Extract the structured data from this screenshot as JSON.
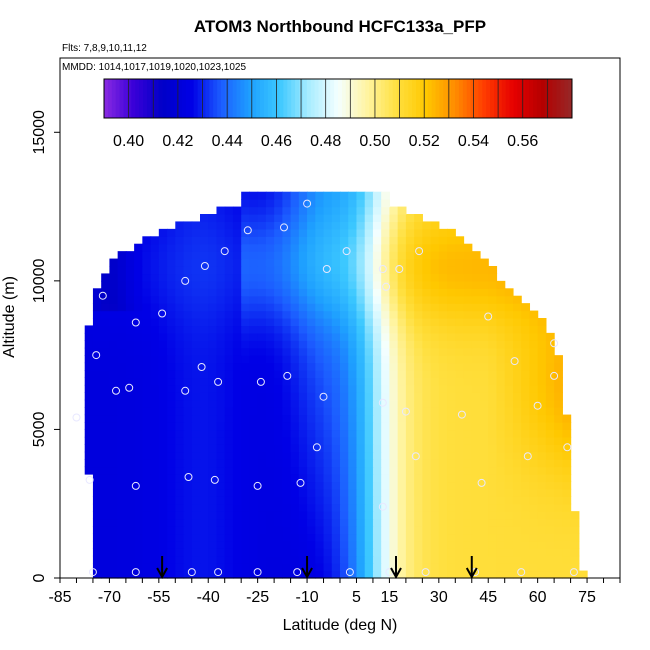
{
  "chart_data": {
    "type": "heatmap",
    "title": "ATOM3 Northbound HCFC133a_PFP",
    "flights_label": "Flts: 7,8,9,10,11,12",
    "mmdd_label": "MMDD: 1014,1017,1019,1020,1023,1025",
    "xlabel": "Latitude (deg N)",
    "ylabel": "Altitude (m)",
    "xlim": [
      -85,
      85
    ],
    "ylim": [
      0,
      17500
    ],
    "x_ticks": [
      -85,
      -70,
      -55,
      -40,
      -25,
      -10,
      5,
      15,
      30,
      45,
      60,
      75
    ],
    "x_minor_step": 5,
    "y_ticks": [
      0,
      5000,
      10000,
      15000
    ],
    "colorbar": {
      "min": 0.39,
      "max": 0.58,
      "tick_values": [
        0.4,
        0.42,
        0.44,
        0.46,
        0.48,
        0.5,
        0.52,
        0.54,
        0.56
      ],
      "tick_labels": [
        "0.40",
        "0.42",
        "0.44",
        "0.46",
        "0.48",
        "0.50",
        "0.52",
        "0.54",
        "0.56"
      ],
      "colors": [
        "#8a2be2",
        "#3a00d8",
        "#0000c8",
        "#0000e6",
        "#1c5cff",
        "#1ea0ff",
        "#3cc8ff",
        "#a8ecff",
        "#f4ffff",
        "#fff4a0",
        "#ffe040",
        "#ffc800",
        "#ff8c00",
        "#ff3c00",
        "#e60000",
        "#b40000",
        "#962828"
      ]
    },
    "altitude_envelope": [
      {
        "alt": 0,
        "lat_min": -75,
        "lat_max": 74
      },
      {
        "alt": 1500,
        "lat_min": -75,
        "lat_max": 72
      },
      {
        "alt": 3000,
        "lat_min": -76,
        "lat_max": 70
      },
      {
        "alt": 4500,
        "lat_min": -77,
        "lat_max": 70
      },
      {
        "alt": 6000,
        "lat_min": -77,
        "lat_max": 68
      },
      {
        "alt": 7500,
        "lat_min": -77,
        "lat_max": 66
      },
      {
        "alt": 8500,
        "lat_min": -76,
        "lat_max": 62
      },
      {
        "alt": 9500,
        "lat_min": -74,
        "lat_max": 53
      },
      {
        "alt": 10500,
        "lat_min": -70,
        "lat_max": 44
      },
      {
        "alt": 11500,
        "lat_min": -55,
        "lat_max": 34
      },
      {
        "alt": 12500,
        "lat_min": -30,
        "lat_max": 14
      }
    ],
    "sample_points": [
      {
        "lat": -75,
        "alt": 200
      },
      {
        "lat": -62,
        "alt": 200
      },
      {
        "lat": -45,
        "alt": 200
      },
      {
        "lat": -37,
        "alt": 200
      },
      {
        "lat": -25,
        "alt": 200
      },
      {
        "lat": -13,
        "alt": 200
      },
      {
        "lat": 3,
        "alt": 200
      },
      {
        "lat": 15,
        "alt": 200
      },
      {
        "lat": 26,
        "alt": 200
      },
      {
        "lat": 41,
        "alt": 200
      },
      {
        "lat": 55,
        "alt": 200
      },
      {
        "lat": 71,
        "alt": 200
      },
      {
        "lat": -76,
        "alt": 3300
      },
      {
        "lat": -62,
        "alt": 3100
      },
      {
        "lat": -46,
        "alt": 3400
      },
      {
        "lat": -38,
        "alt": 3300
      },
      {
        "lat": -25,
        "alt": 3100
      },
      {
        "lat": -12,
        "alt": 3200
      },
      {
        "lat": -7,
        "alt": 4400
      },
      {
        "lat": 13,
        "alt": 2400
      },
      {
        "lat": 23,
        "alt": 4100
      },
      {
        "lat": 43,
        "alt": 3200
      },
      {
        "lat": 57,
        "alt": 4100
      },
      {
        "lat": 69,
        "alt": 4400
      },
      {
        "lat": -80,
        "alt": 5400
      },
      {
        "lat": -68,
        "alt": 6300
      },
      {
        "lat": -64,
        "alt": 6400
      },
      {
        "lat": -47,
        "alt": 6300
      },
      {
        "lat": -37,
        "alt": 6600
      },
      {
        "lat": -24,
        "alt": 6600
      },
      {
        "lat": -16,
        "alt": 6800
      },
      {
        "lat": -5,
        "alt": 6100
      },
      {
        "lat": 13,
        "alt": 5900
      },
      {
        "lat": 20,
        "alt": 5600
      },
      {
        "lat": 37,
        "alt": 5500
      },
      {
        "lat": 60,
        "alt": 5800
      },
      {
        "lat": 65,
        "alt": 6800
      },
      {
        "lat": -74,
        "alt": 7500
      },
      {
        "lat": -42,
        "alt": 7100
      },
      {
        "lat": 53,
        "alt": 7300
      },
      {
        "lat": 65,
        "alt": 7900
      },
      {
        "lat": -72,
        "alt": 9500
      },
      {
        "lat": -62,
        "alt": 8600
      },
      {
        "lat": -54,
        "alt": 8900
      },
      {
        "lat": -47,
        "alt": 10000
      },
      {
        "lat": -41,
        "alt": 10500
      },
      {
        "lat": -35,
        "alt": 11000
      },
      {
        "lat": -28,
        "alt": 11700
      },
      {
        "lat": -17,
        "alt": 11800
      },
      {
        "lat": -4,
        "alt": 10400
      },
      {
        "lat": 2,
        "alt": 11000
      },
      {
        "lat": 13,
        "alt": 10400
      },
      {
        "lat": 18,
        "alt": 10400
      },
      {
        "lat": 24,
        "alt": 11000
      },
      {
        "lat": 14,
        "alt": 9800
      },
      {
        "lat": 45,
        "alt": 8800
      },
      {
        "lat": -10,
        "alt": 12600
      }
    ],
    "arrow_lats": [
      -54,
      -10,
      17,
      40
    ]
  }
}
